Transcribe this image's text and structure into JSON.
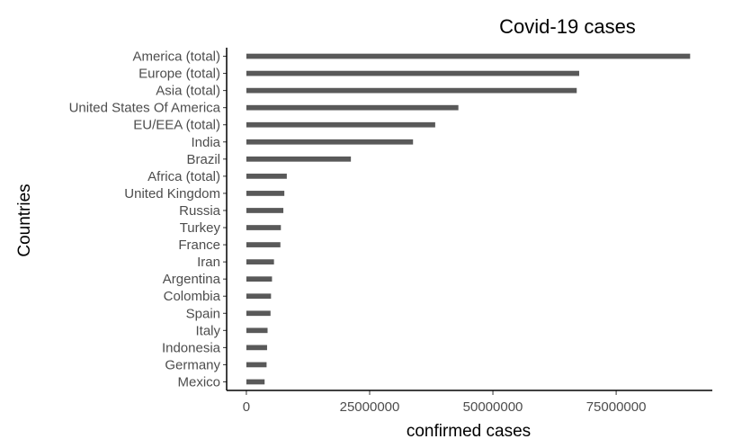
{
  "chart_data": {
    "type": "bar",
    "orientation": "horizontal",
    "title": "Covid-19 cases",
    "xlabel": "confirmed cases",
    "ylabel": "Countries",
    "categories": [
      "America (total)",
      "Europe (total)",
      "Asia (total)",
      "United States Of America",
      "EU/EEA (total)",
      "India",
      "Brazil",
      "Africa (total)",
      "United Kingdom",
      "Russia",
      "Turkey",
      "France",
      "Iran",
      "Argentina",
      "Colombia",
      "Spain",
      "Italy",
      "Indonesia",
      "Germany",
      "Mexico"
    ],
    "values": [
      90000000,
      67500000,
      67000000,
      43000000,
      38300000,
      33800000,
      21200000,
      8200000,
      7700000,
      7500000,
      7000000,
      6900000,
      5600000,
      5200000,
      5000000,
      4900000,
      4300000,
      4200000,
      4100000,
      3700000
    ],
    "xticks": [
      0,
      25000000,
      50000000,
      75000000
    ],
    "xtick_labels": [
      "0",
      "25000000",
      "50000000",
      "75000000"
    ],
    "xlim": [
      -4000000,
      94500000
    ],
    "bar_color": "#595959",
    "grid": false,
    "legend": "none"
  }
}
